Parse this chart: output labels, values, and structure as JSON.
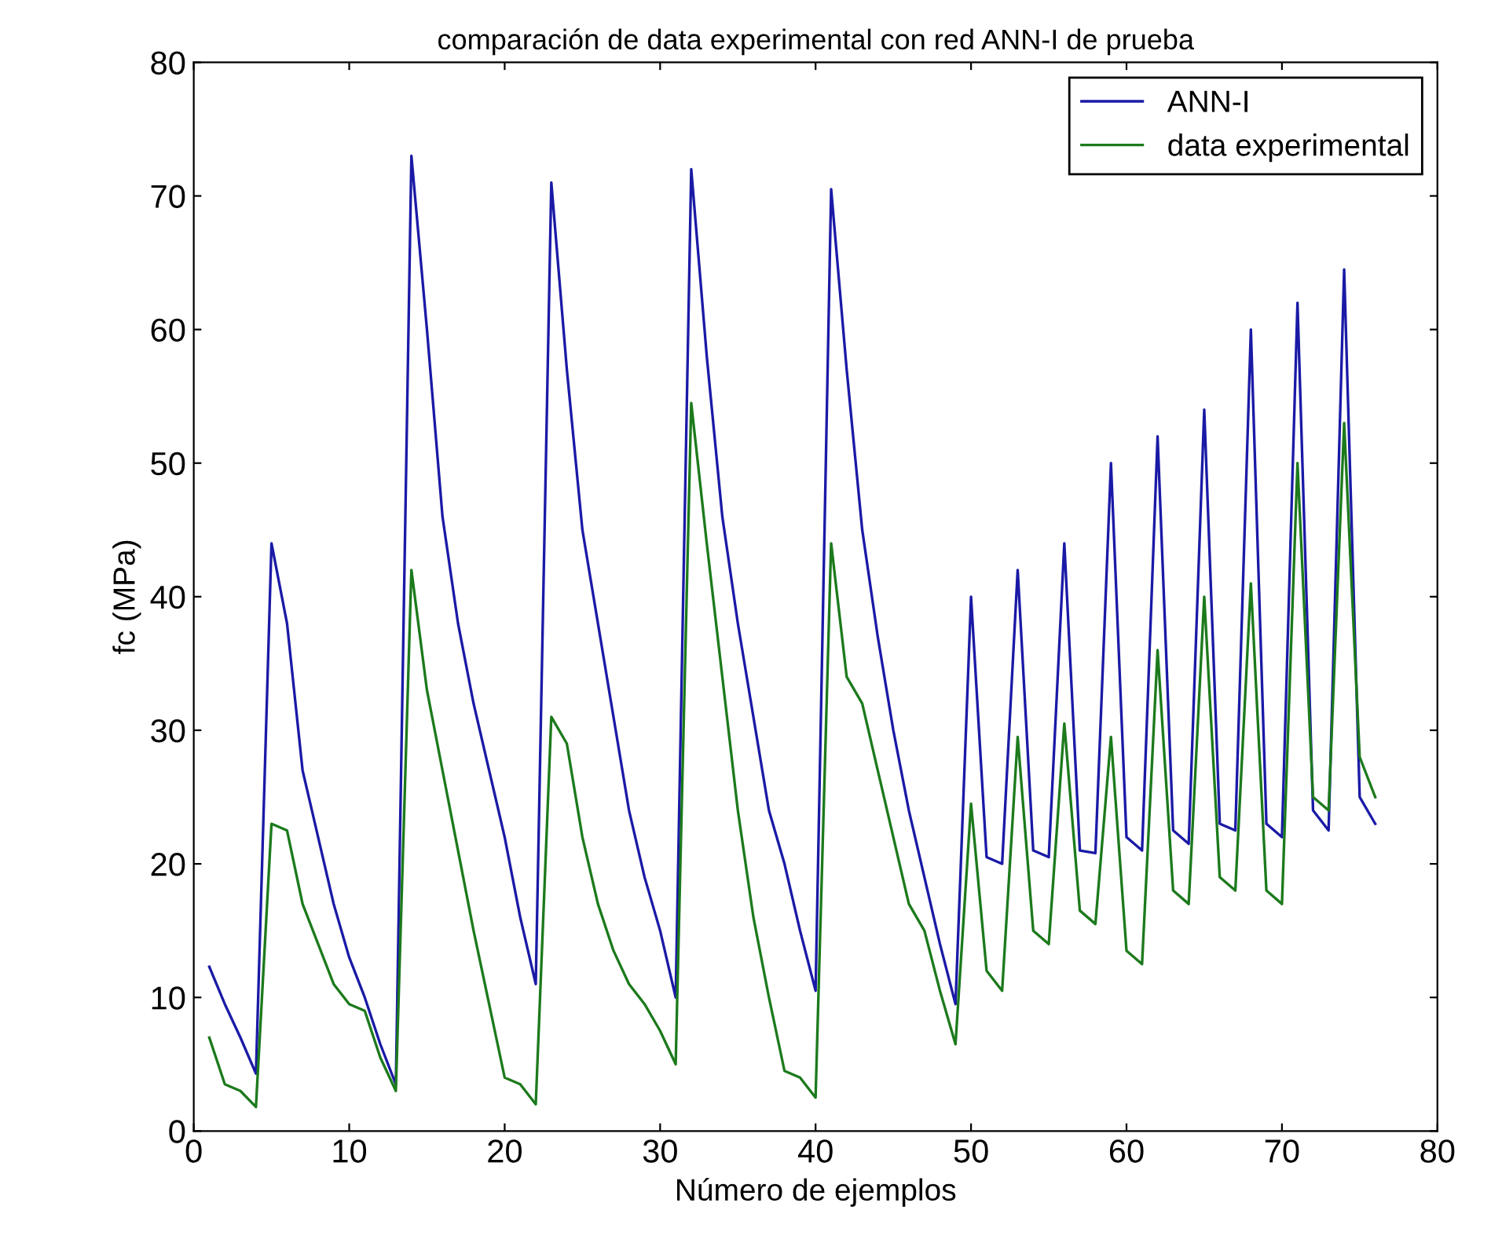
{
  "chart_data": {
    "type": "line",
    "title": "comparación de data experimental con red ANN-I de prueba",
    "xlabel": "Número de ejemplos",
    "ylabel": "fc (MPa)",
    "x": [
      1,
      2,
      3,
      4,
      5,
      6,
      7,
      8,
      9,
      10,
      11,
      12,
      13,
      14,
      15,
      16,
      17,
      18,
      19,
      20,
      21,
      22,
      23,
      24,
      25,
      26,
      27,
      28,
      29,
      30,
      31,
      32,
      33,
      34,
      35,
      36,
      37,
      38,
      39,
      40,
      41,
      42,
      43,
      44,
      45,
      46,
      47,
      48,
      49,
      50,
      51,
      52,
      53,
      54,
      55,
      56,
      57,
      58,
      59,
      60,
      61,
      62,
      63,
      64,
      65,
      66,
      67,
      68,
      69,
      70,
      71,
      72,
      73,
      74,
      75,
      76
    ],
    "series": [
      {
        "name": "ANN-I",
        "color": "#1a1aa6",
        "values": [
          12.3,
          9.5,
          7,
          4.3,
          44,
          38,
          27,
          22,
          17,
          13,
          10,
          6.5,
          3.5,
          73,
          60,
          46,
          38,
          32,
          27,
          22,
          16,
          11,
          71,
          57,
          45,
          38,
          31,
          24,
          19,
          15,
          10,
          72,
          58,
          46,
          38,
          31,
          24,
          20,
          15,
          10.5,
          70.5,
          57,
          45,
          37,
          30,
          24,
          19,
          14,
          9.5,
          40,
          20.5,
          20,
          42,
          21,
          20.5,
          44,
          21,
          20.8,
          50,
          22,
          21,
          52,
          22.5,
          21.5,
          54,
          23,
          22.5,
          60,
          23,
          22,
          62,
          24,
          22.5,
          64.5,
          25,
          23
        ]
      },
      {
        "name": "data experimental",
        "color": "#1c7a1c",
        "values": [
          7,
          3.5,
          3,
          1.8,
          23,
          22.5,
          17,
          14,
          11,
          9.5,
          9,
          5.5,
          3,
          42,
          33,
          27,
          21,
          15,
          9.5,
          4,
          3.5,
          2,
          31,
          29,
          22,
          17,
          13.5,
          11,
          9.5,
          7.5,
          5,
          54.5,
          44,
          34,
          24,
          16,
          10,
          4.5,
          4,
          2.5,
          44,
          34,
          32,
          27,
          22,
          17,
          15,
          10.5,
          6.5,
          24.5,
          12,
          10.5,
          29.5,
          15,
          14,
          30.5,
          16.5,
          15.5,
          29.5,
          13.5,
          12.5,
          36,
          18,
          17,
          40,
          19,
          18,
          41,
          18,
          17,
          50,
          25,
          24,
          53,
          28,
          25
        ]
      }
    ],
    "xlim": [
      0,
      80
    ],
    "ylim": [
      0,
      80
    ],
    "xticks": [
      0,
      10,
      20,
      30,
      40,
      50,
      60,
      70,
      80
    ],
    "yticks": [
      0,
      10,
      20,
      30,
      40,
      50,
      60,
      70,
      80
    ],
    "grid": false,
    "legend": "top right"
  }
}
